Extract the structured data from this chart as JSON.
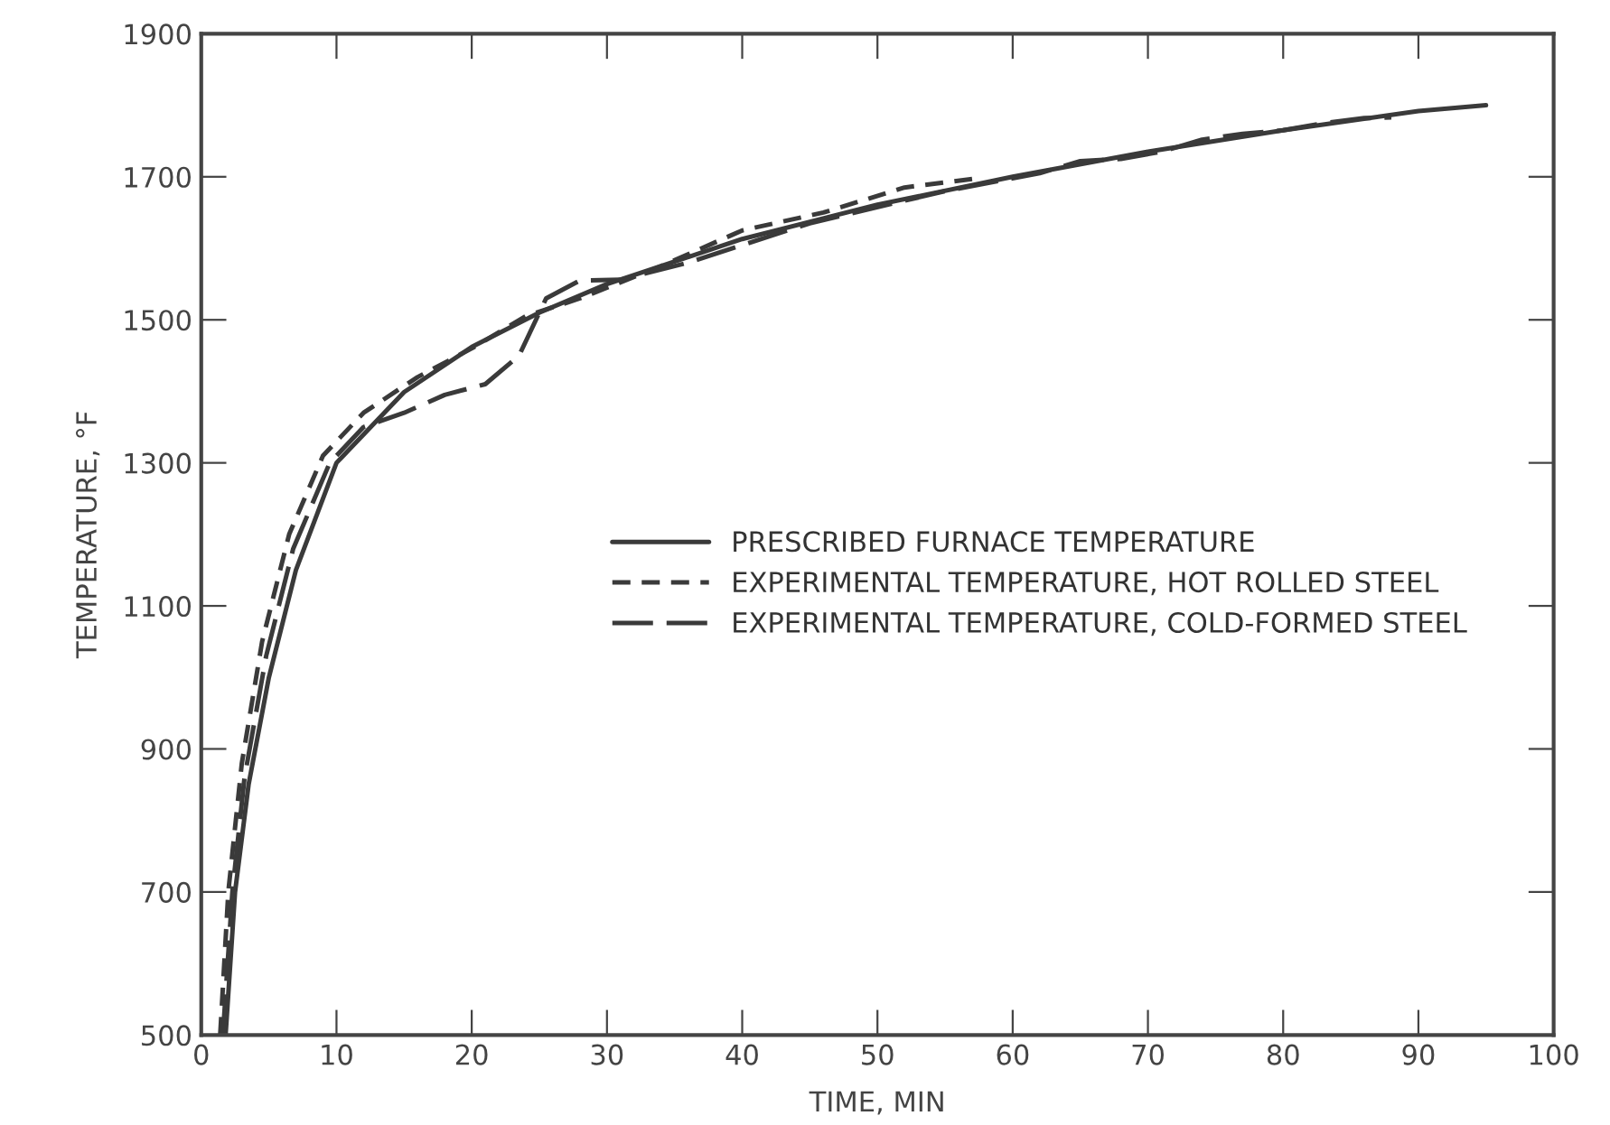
{
  "chart_data": {
    "type": "line",
    "xlabel": "TIME, MIN",
    "ylabel": "TEMPERATURE, °F",
    "xlim": [
      0,
      100
    ],
    "ylim": [
      500,
      1900
    ],
    "xticks": [
      0,
      10,
      20,
      30,
      40,
      50,
      60,
      70,
      80,
      90,
      100
    ],
    "yticks": [
      500,
      700,
      900,
      1100,
      1300,
      1500,
      1700,
      1900
    ],
    "grid": false,
    "legend": "center",
    "marker": "none",
    "series": [
      {
        "name": "PRESCRIBED FURNACE TEMPERATURE",
        "color": "#3a3a3a",
        "line_style": "solid",
        "x": [
          1.8,
          2.5,
          3.5,
          5,
          7,
          10,
          15,
          20,
          25,
          30,
          40,
          50,
          60,
          70,
          80,
          90,
          95
        ],
        "values": [
          500,
          700,
          850,
          1000,
          1150,
          1300,
          1399,
          1462,
          1510,
          1550,
          1613,
          1661,
          1700,
          1735,
          1765,
          1792,
          1800
        ]
      },
      {
        "name": "EXPERIMENTAL TEMPERATURE, HOT ROLLED STEEL",
        "color": "#3a3a3a",
        "line_style": "dashed",
        "x": [
          1.4,
          2,
          3,
          4.5,
          6.5,
          9,
          12,
          16,
          20,
          24,
          28,
          34,
          40,
          46,
          52,
          57
        ],
        "values": [
          500,
          700,
          880,
          1050,
          1200,
          1310,
          1370,
          1420,
          1460,
          1505,
          1530,
          1575,
          1625,
          1650,
          1685,
          1697
        ]
      },
      {
        "name": "EXPERIMENTAL TEMPERATURE, COLD-FORMED STEEL",
        "color": "#3a3a3a",
        "line_style": "dashed_long",
        "x": [
          1.6,
          2.3,
          3.2,
          4.8,
          6.8,
          9.5,
          12,
          15,
          18,
          21,
          23.5,
          25.5,
          28,
          31,
          36,
          45,
          55,
          62,
          65,
          68,
          71,
          74,
          77,
          80,
          83,
          86,
          88
        ],
        "values": [
          500,
          700,
          860,
          1030,
          1180,
          1300,
          1350,
          1370,
          1395,
          1410,
          1450,
          1530,
          1555,
          1556,
          1580,
          1635,
          1680,
          1705,
          1722,
          1725,
          1735,
          1752,
          1760,
          1765,
          1775,
          1782,
          1783
        ]
      }
    ]
  }
}
